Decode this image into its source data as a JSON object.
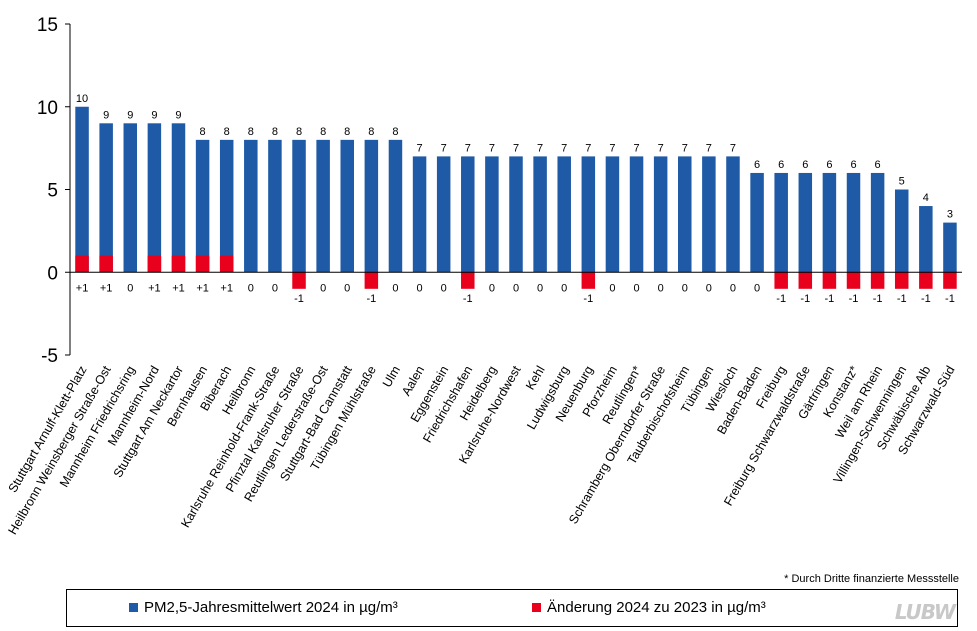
{
  "chart_data": {
    "type": "bar",
    "categories": [
      "Stuttgart Arnulf-Klett-Platz",
      "Heilbronn Weinsberger Straße-Ost",
      "Mannheim Friedrichsring",
      "Mannheim-Nord",
      "Stuttgart Am Neckartor",
      "Bernhausen",
      "Biberach",
      "Heilbronn",
      "Karlsruhe Reinhold-Frank-Straße",
      "Pfinztal Karlsruher Straße",
      "Reutlingen Lederstraße-Ost",
      "Stuttgart-Bad Cannstatt",
      "Tübingen Mühlstraße",
      "Ulm",
      "Aalen",
      "Eggenstein",
      "Friedrichshafen",
      "Heidelberg",
      "Karlsruhe-Nordwest",
      "Kehl",
      "Ludwigsburg",
      "Neuenburg",
      "Pforzheim",
      "Reutlingen*",
      "Schramberg Oberndorfer Straße",
      "Tauberbischofsheim",
      "Tübingen",
      "Wiesloch",
      "Baden-Baden",
      "Freiburg",
      "Freiburg Schwarzwaldstraße",
      "Gärtringen",
      "Konstanz*",
      "Weil am Rhein",
      "Villingen-Schwenningen",
      "Schwäbische Alb",
      "Schwarzwald-Süd"
    ],
    "series": [
      {
        "name": "PM2,5-Jahresmittelwert 2024 in µg/m³",
        "color": "#1f5aa6",
        "values": [
          10,
          9,
          9,
          9,
          9,
          8,
          8,
          8,
          8,
          8,
          8,
          8,
          8,
          8,
          7,
          7,
          7,
          7,
          7,
          7,
          7,
          7,
          7,
          7,
          7,
          7,
          7,
          7,
          6,
          6,
          6,
          6,
          6,
          6,
          5,
          4,
          3
        ]
      },
      {
        "name": "Änderung 2024 zu 2023 in µg/m³",
        "color": "#e8001c",
        "values": [
          1,
          1,
          0,
          1,
          1,
          1,
          1,
          0,
          0,
          -1,
          0,
          0,
          -1,
          0,
          0,
          0,
          -1,
          0,
          0,
          0,
          0,
          -1,
          0,
          0,
          0,
          0,
          0,
          0,
          0,
          -1,
          -1,
          -1,
          -1,
          -1,
          -1,
          -1,
          -1
        ],
        "labels": [
          "+1",
          "+1",
          "0",
          "+1",
          "+1",
          "+1",
          "+1",
          "0",
          "0",
          "-1",
          "0",
          "0",
          "-1",
          "0",
          "0",
          "0",
          "-1",
          "0",
          "0",
          "0",
          "0",
          "-1",
          "0",
          "0",
          "0",
          "0",
          "0",
          "0",
          "0",
          "-1",
          "-1",
          "-1",
          "-1",
          "-1",
          "-1",
          "-1",
          "-1"
        ]
      }
    ],
    "title": "",
    "xlabel": "",
    "ylabel": "",
    "ylim": [
      -5,
      15
    ],
    "yticks": [
      -5,
      0,
      5,
      10,
      15
    ],
    "ytick_labels": [
      "-5",
      "0",
      "5",
      "10",
      "15"
    ],
    "grid": false,
    "legend": "bottom"
  },
  "footnote": "* Durch Dritte finanzierte Messstelle",
  "legend": {
    "pm_label": "PM2,5-Jahresmittelwert 2024 in µg/m³",
    "change_label": "Änderung 2024 zu 2023 in µg/m³"
  },
  "logo_text": "LUBW"
}
